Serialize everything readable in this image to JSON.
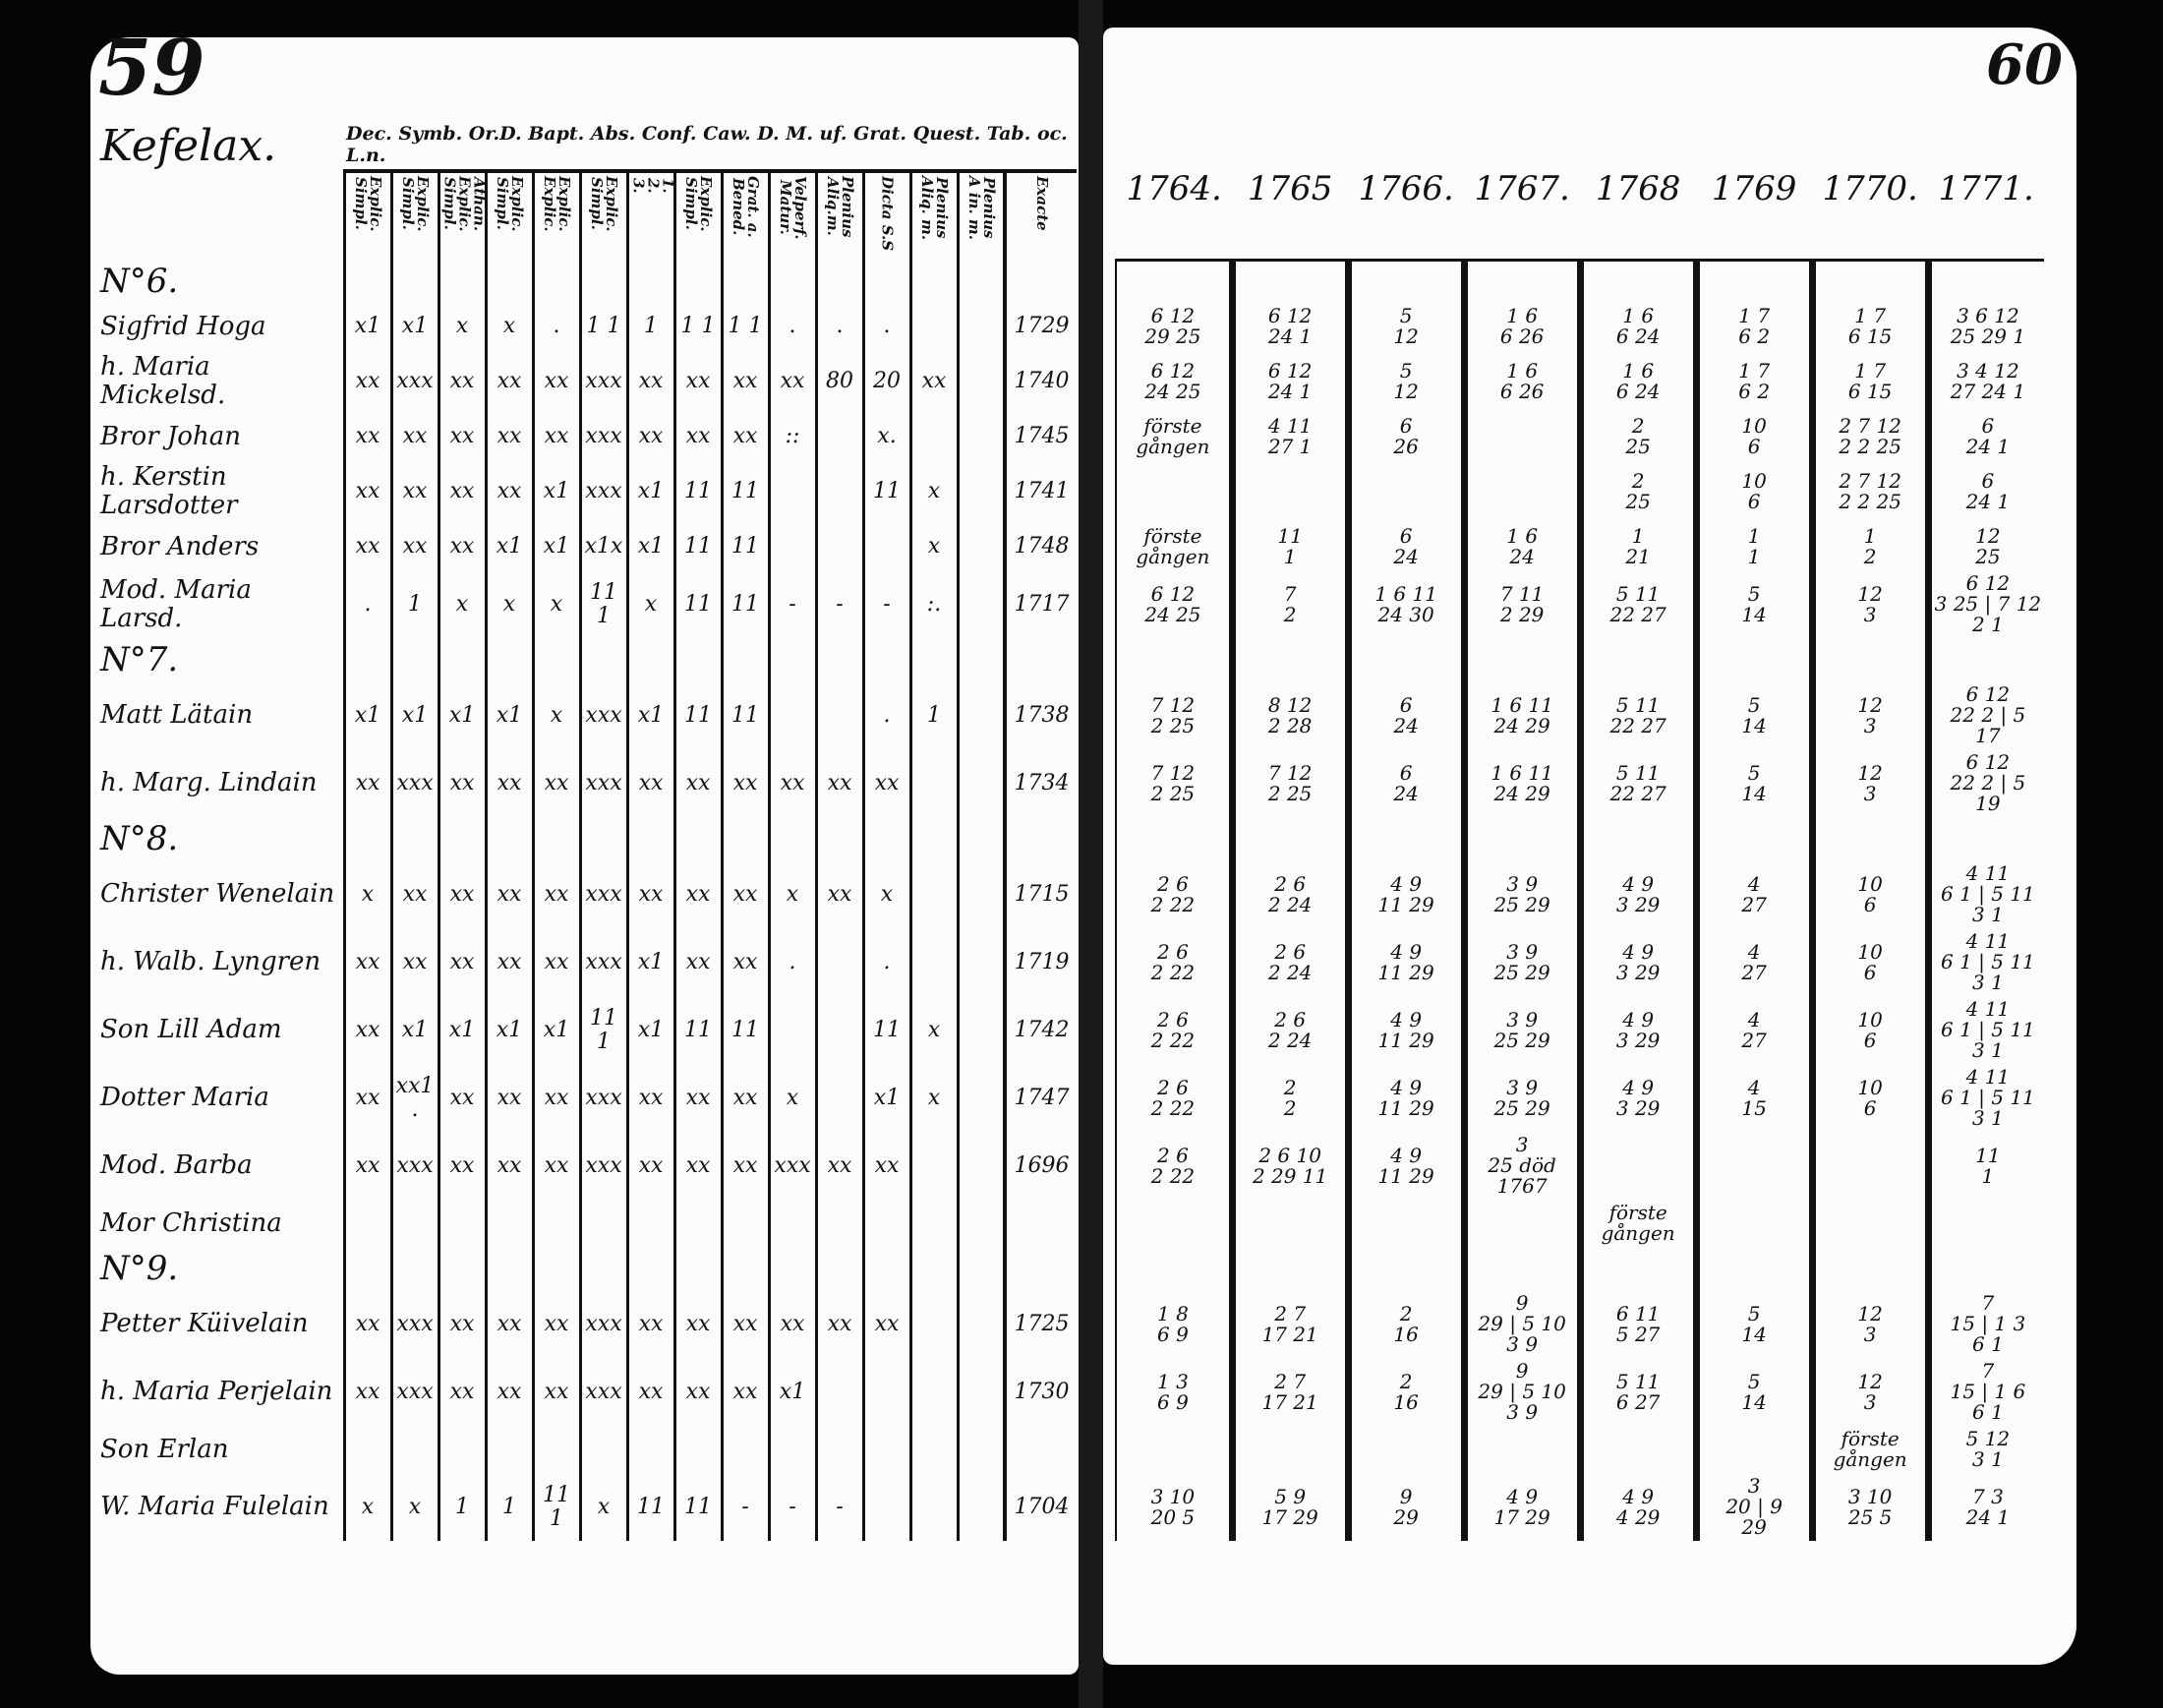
{
  "left_page": {
    "page_number": "59",
    "village": "Kefelax.",
    "column_header": "Dec. Symb. Or.D. Bapt. Abs. Conf. Caw. D. M. uf. Grat. Quest. Tab. oc. L.n.",
    "subcolumns": [
      "Explic.\nSimpl.",
      "Explic.\nSimpl.",
      "Athan.\nExplic.\nSimpl.",
      "Explic.\nSimpl.",
      "Explic.\nExplic.",
      "Explic.\nSimpl.",
      "1.\n2.\n3.",
      "Explic.\nSimpl.",
      "Grat. a.\nBened.",
      "Velperf.\nMatur.",
      "Plenius\nAliq.m.",
      "Dicta S.S",
      "Plenius\nAliq. m.",
      "Plenius\nA in. m.",
      "Exacte"
    ]
  },
  "right_page": {
    "page_number": "60",
    "years": [
      "1764.",
      "1765",
      "1766.",
      "1767.",
      "1768",
      "1769",
      "1770.",
      "1771."
    ]
  },
  "sections": [
    {
      "label": "N°6."
    },
    {
      "label": "N°7."
    },
    {
      "label": "N°8."
    },
    {
      "label": "N°9."
    }
  ],
  "rows": [
    {
      "name": "Sigfrid Hoga",
      "born": "1729",
      "marks": [
        "x1",
        "x1",
        "x",
        "x",
        ".",
        "1 1",
        "1",
        "1 1",
        "1 1",
        ".",
        ".",
        ".",
        "",
        ""
      ],
      "dates": [
        "6 12\n29 25",
        "6 12\n24 1",
        "5\n12",
        "1 6\n6 26",
        "1 6\n6 24",
        "1 7\n6 2",
        "1 7\n6 15",
        "3 6 12\n25 29 1"
      ]
    },
    {
      "name": "h. Maria Mickelsd.",
      "born": "1740",
      "marks": [
        "xx",
        "xxx",
        "xx",
        "xx",
        "xx",
        "xxx",
        "xx",
        "xx",
        "xx",
        "xx",
        "80",
        "20",
        "xx",
        ""
      ],
      "dates": [
        "6 12\n24 25",
        "6 12\n24 1",
        "5\n12",
        "1 6\n6 26",
        "1 6\n6 24",
        "1 7\n6 2",
        "1 7\n6 15",
        "3 4 12\n27 24 1"
      ]
    },
    {
      "name": "Bror Johan",
      "born": "1745",
      "marks": [
        "xx",
        "xx",
        "xx",
        "xx",
        "xx",
        "xxx",
        "xx",
        "xx",
        "xx",
        "::",
        "",
        "x.",
        "",
        ""
      ],
      "dates": [
        "förste gången",
        "4 11\n27 1",
        "6\n26",
        "",
        "2\n25",
        "10\n6",
        "2 7 12\n2 2 25",
        "6\n24 1"
      ]
    },
    {
      "name": "h. Kerstin Larsdotter",
      "born": "1741",
      "marks": [
        "xx",
        "xx",
        "xx",
        "xx",
        "x1",
        "xxx",
        "x1",
        "11",
        "11",
        "",
        "",
        "11",
        "x",
        ""
      ],
      "dates": [
        "",
        "",
        "",
        "",
        "2\n25",
        "10\n6",
        "2 7 12\n2 2 25",
        "6\n24 1"
      ]
    },
    {
      "name": "Bror Anders",
      "born": "1748",
      "marks": [
        "xx",
        "xx",
        "xx",
        "x1",
        "x1",
        "x1x",
        "x1",
        "11",
        "11",
        "",
        "",
        "",
        "x",
        ""
      ],
      "dates": [
        "förste gången",
        "11\n1",
        "6\n24",
        "1 6\n24",
        "1\n21",
        "1\n1",
        "1\n2",
        "12\n25"
      ]
    },
    {
      "name": "Mod. Maria Larsd.",
      "born": "1717",
      "marks": [
        ".",
        "1",
        "x",
        "x",
        "x",
        "111",
        "x",
        "11",
        "11",
        "-",
        "-",
        "-",
        ":.",
        ""
      ],
      "dates": [
        "6 12\n24 25",
        "7\n2",
        "1 6 11\n24 30",
        "7 11\n2 29",
        "5 11\n22 27",
        "5\n14",
        "12\n3",
        "6 12\n3 25 | 7 12\n2 1"
      ]
    },
    {
      "name": "Matt Lätain",
      "born": "1738",
      "marks": [
        "x1",
        "x1",
        "x1",
        "x1",
        "x",
        "xxx",
        "x1",
        "11",
        "11",
        "",
        "",
        ".",
        "1",
        ""
      ],
      "dates": [
        "7 12\n2 25",
        "8 12\n2 28",
        "6\n24",
        "1 6 11\n24 29",
        "5 11\n22 27",
        "5\n14",
        "12\n3",
        "6 12\n22 2 | 5\n17"
      ]
    },
    {
      "name": "h. Marg. Lindain",
      "born": "1734",
      "marks": [
        "xx",
        "xxx",
        "xx",
        "xx",
        "xx",
        "xxx",
        "xx",
        "xx",
        "xx",
        "xx",
        "xx",
        "xx",
        "",
        ""
      ],
      "dates": [
        "7 12\n2 25",
        "7 12\n2 25",
        "6\n24",
        "1 6 11\n24 29",
        "5 11\n22 27",
        "5\n14",
        "12\n3",
        "6 12\n22 2 | 5\n19"
      ]
    },
    {
      "name": "Christer Wenelain",
      "born": "1715",
      "marks": [
        "x",
        "xx",
        "xx",
        "xx",
        "xx",
        "xxx",
        "xx",
        "xx",
        "xx",
        "x",
        "xx",
        "x",
        "",
        ""
      ],
      "dates": [
        "2 6\n2 22",
        "2 6\n2 24",
        "4 9\n11 29",
        "3 9\n25 29",
        "4 9\n3 29",
        "4\n27",
        "10\n6",
        "4 11\n6 1 | 5 11\n3 1"
      ]
    },
    {
      "name": "h. Walb. Lyngren",
      "born": "1719",
      "marks": [
        "xx",
        "xx",
        "xx",
        "xx",
        "xx",
        "xxx",
        "x1",
        "xx",
        "xx",
        ".",
        "",
        ".",
        "",
        ""
      ],
      "dates": [
        "2 6\n2 22",
        "2 6\n2 24",
        "4 9\n11 29",
        "3 9\n25 29",
        "4 9\n3 29",
        "4\n27",
        "10\n6",
        "4 11\n6 1 | 5 11\n3 1"
      ]
    },
    {
      "name": "Son Lill Adam",
      "born": "1742",
      "marks": [
        "xx",
        "x1",
        "x1",
        "x1",
        "x1",
        "111",
        "x1",
        "11",
        "11",
        "",
        "",
        "11",
        "x",
        ""
      ],
      "dates": [
        "2 6\n2 22",
        "2 6\n2 24",
        "4 9\n11 29",
        "3 9\n25 29",
        "4 9\n3 29",
        "4\n27",
        "10\n6",
        "4 11\n6 1 | 5 11\n3 1"
      ]
    },
    {
      "name": "Dotter Maria",
      "born": "1747",
      "marks": [
        "xx",
        "xx1.",
        "xx",
        "xx",
        "xx",
        "xxx",
        "xx",
        "xx",
        "xx",
        "x",
        "",
        "x1",
        "x",
        ""
      ],
      "dates": [
        "2 6\n2 22",
        "2\n2",
        "4 9\n11 29",
        "3 9\n25 29",
        "4 9\n3 29",
        "4\n15",
        "10\n6",
        "4 11\n6 1 | 5 11\n3 1"
      ]
    },
    {
      "name": "Mod. Barba",
      "born": "1696",
      "marks": [
        "xx",
        "xxx",
        "xx",
        "xx",
        "xx",
        "xxx",
        "xx",
        "xx",
        "xx",
        "xxx",
        "xx",
        "xx",
        "",
        ""
      ],
      "dates": [
        "2 6\n2 22",
        "2 6 10\n2 29 11",
        "4 9\n11 29",
        "3\n25 död 1767",
        "",
        "",
        "",
        "11\n1"
      ]
    },
    {
      "name": "Mor Christina",
      "born": "",
      "marks": [
        "",
        "",
        "",
        "",
        "",
        "",
        "",
        "",
        "",
        "",
        "",
        "",
        "",
        ""
      ],
      "dates": [
        "",
        "",
        "",
        "",
        "förste gången",
        "",
        "",
        ""
      ]
    },
    {
      "name": "Petter Küivelain",
      "born": "1725",
      "marks": [
        "xx",
        "xxx",
        "xx",
        "xx",
        "xx",
        "xxx",
        "xx",
        "xx",
        "xx",
        "xx",
        "xx",
        "xx",
        "",
        ""
      ],
      "dates": [
        "1 8\n6 9",
        "2 7\n17 21",
        "2\n16",
        "9\n29 | 5 10\n3 9",
        "6 11\n5 27",
        "5\n14",
        "12\n3",
        "7\n15 | 1 3\n6 1"
      ]
    },
    {
      "name": "h. Maria Perjelain",
      "born": "1730",
      "marks": [
        "xx",
        "xxx",
        "xx",
        "xx",
        "xx",
        "xxx",
        "xx",
        "xx",
        "xx",
        "x1",
        "",
        "",
        "",
        ""
      ],
      "dates": [
        "1 3\n6 9",
        "2 7\n17 21",
        "2\n16",
        "9\n29 | 5 10\n3 9",
        "5 11\n6 27",
        "5\n14",
        "12\n3",
        "7\n15 | 1 6\n6 1"
      ]
    },
    {
      "name": "Son Erlan",
      "born": "",
      "marks": [
        "",
        "",
        "",
        "",
        "",
        "",
        "",
        "",
        "",
        "",
        "",
        "",
        "",
        ""
      ],
      "dates": [
        "",
        "",
        "",
        "",
        "",
        "",
        "förste gången",
        "5 12\n3 1"
      ]
    },
    {
      "name": "W. Maria Fulelain",
      "born": "1704",
      "marks": [
        "x",
        "x",
        "1",
        "1",
        "111",
        "x",
        "11",
        "11",
        "-",
        "-",
        "-",
        "",
        "",
        ""
      ],
      "dates": [
        "3 10\n20 5",
        "5 9\n17 29",
        "9\n29",
        "4 9\n17 29",
        "4 9\n4 29",
        "3\n20 | 9\n29",
        "3 10\n25 5",
        "7 3\n24 1"
      ]
    }
  ]
}
